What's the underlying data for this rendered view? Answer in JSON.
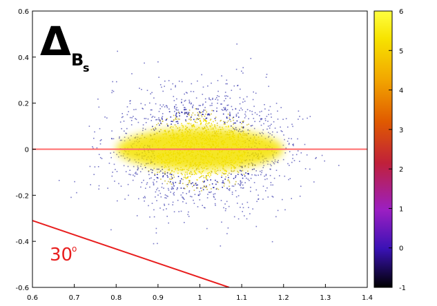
{
  "chart_data": {
    "type": "heatmap",
    "title": "",
    "xlabel": "",
    "ylabel": "",
    "xlim": [
      0.6,
      1.4
    ],
    "ylim": [
      -0.6,
      0.6
    ],
    "x_ticks": [
      "0.6",
      "0.7",
      "0.8",
      "0.9",
      "1",
      "1.1",
      "1.2",
      "1.3",
      "1.4"
    ],
    "y_ticks": [
      "0.6",
      "0.4",
      "0.2",
      "0",
      "-0.2",
      "-0.4",
      "-0.6"
    ],
    "colorbar": {
      "range": [
        -1,
        6
      ],
      "ticks": [
        "6",
        "5",
        "4",
        "3",
        "2",
        "1",
        "0",
        "-1"
      ],
      "colors": [
        "#000000",
        "#3a12b5",
        "#9b1fc2",
        "#c0203a",
        "#e05a00",
        "#f2a500",
        "#f7e300",
        "#ffff40"
      ]
    },
    "density": {
      "center": [
        1.0,
        0.0
      ],
      "sigma_x": 0.1,
      "sigma_y": 0.12,
      "core_half_width": 0.2,
      "core_half_height": 0.09,
      "core_color": "#f4e200",
      "point_color": "#1a1aa0"
    },
    "reference_line": {
      "y": 0.0,
      "color": "#ff6a6a"
    },
    "angle_line": {
      "x": [
        0.6,
        1.07
      ],
      "y": [
        -0.31,
        -0.6
      ],
      "color": "#e81e1e"
    },
    "annotations": {
      "symbol_main": "Δ",
      "symbol_sub": "B",
      "symbol_subsub": "s",
      "angle_label": "30",
      "degree_mark": "o"
    }
  }
}
